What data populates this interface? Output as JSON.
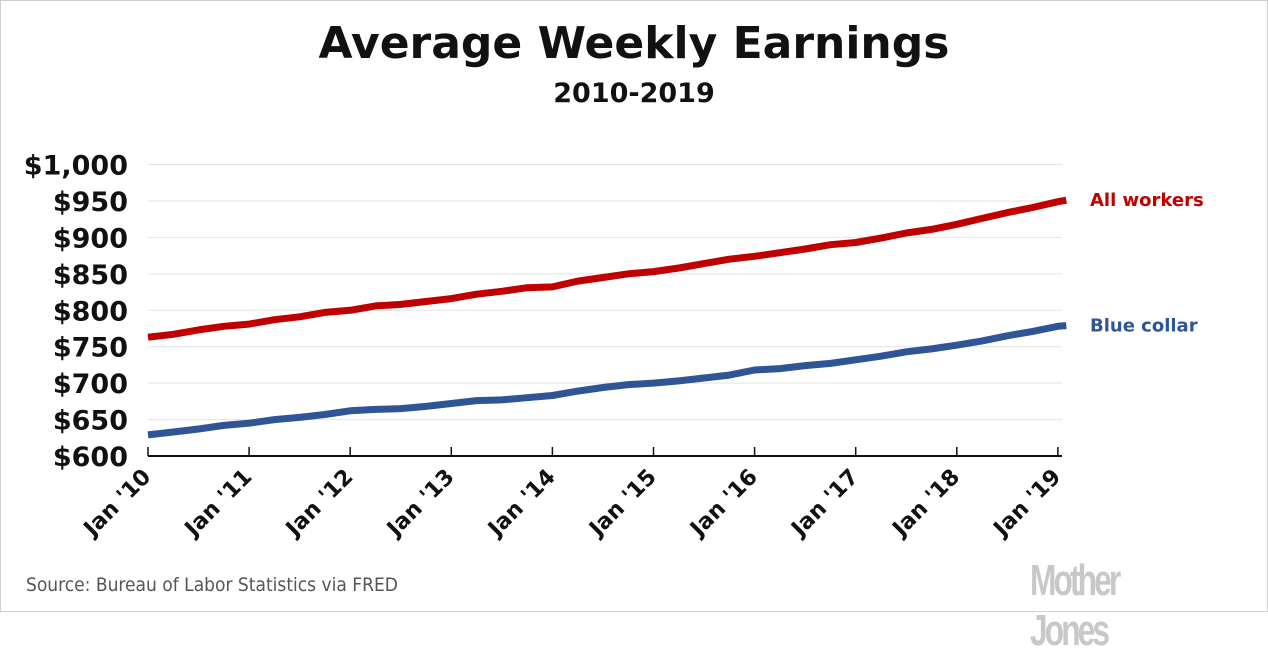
{
  "chart_data": {
    "type": "line",
    "title": "Average Weekly Earnings",
    "subtitle": "2010-2019",
    "xlabel": "",
    "ylabel": "",
    "ylim": [
      600,
      1000
    ],
    "y_ticks": [
      "$600",
      "$650",
      "$700",
      "$750",
      "$800",
      "$850",
      "$900",
      "$950",
      "$1,000"
    ],
    "y_tick_values": [
      600,
      650,
      700,
      750,
      800,
      850,
      900,
      950,
      1000
    ],
    "x_tick_labels": [
      "Jan '10",
      "Jan '11",
      "Jan '12",
      "Jan '13",
      "Jan '14",
      "Jan '15",
      "Jan '16",
      "Jan '17",
      "Jan '18",
      "Jan '19"
    ],
    "x_range": [
      "2010-01",
      "2019-02"
    ],
    "grid": true,
    "x": [
      "2010-01",
      "2010-04",
      "2010-07",
      "2010-10",
      "2011-01",
      "2011-04",
      "2011-07",
      "2011-10",
      "2012-01",
      "2012-04",
      "2012-07",
      "2012-10",
      "2013-01",
      "2013-04",
      "2013-07",
      "2013-10",
      "2014-01",
      "2014-04",
      "2014-07",
      "2014-10",
      "2015-01",
      "2015-04",
      "2015-07",
      "2015-10",
      "2016-01",
      "2016-04",
      "2016-07",
      "2016-10",
      "2017-01",
      "2017-04",
      "2017-07",
      "2017-10",
      "2018-01",
      "2018-04",
      "2018-07",
      "2018-10",
      "2019-01",
      "2019-02"
    ],
    "series": [
      {
        "name": "All workers",
        "color": "#c00000",
        "values": [
          763,
          767,
          773,
          778,
          781,
          787,
          791,
          797,
          800,
          806,
          808,
          812,
          816,
          822,
          826,
          831,
          832,
          840,
          845,
          850,
          853,
          858,
          864,
          870,
          874,
          879,
          884,
          890,
          893,
          899,
          906,
          911,
          918,
          926,
          934,
          941,
          949,
          951
        ]
      },
      {
        "name": "Blue collar",
        "color": "#2f5597",
        "values": [
          629,
          633,
          637,
          642,
          645,
          650,
          653,
          657,
          662,
          664,
          665,
          668,
          672,
          676,
          677,
          680,
          683,
          689,
          694,
          698,
          700,
          703,
          707,
          711,
          718,
          720,
          724,
          727,
          732,
          737,
          743,
          747,
          752,
          758,
          765,
          771,
          778,
          779
        ]
      }
    ],
    "legend": "direct labels at right end of lines"
  },
  "source": "Source: Bureau of Labor Statistics via FRED",
  "logo": "Mother Jones"
}
